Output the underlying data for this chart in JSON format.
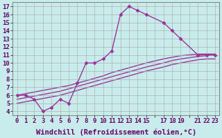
{
  "xlabel": "Windchill (Refroidissement éolien,°C)",
  "background_color": "#c8ecec",
  "grid_color": "#b0b0b0",
  "line_color": "#993399",
  "xlim": [
    -0.5,
    23.5
  ],
  "ylim": [
    3.5,
    17.5
  ],
  "xtick_labels": [
    "0",
    "1",
    "2",
    "3",
    "4",
    "5",
    "6",
    "7",
    "8",
    "9",
    "10",
    "11",
    "12",
    "13",
    "14",
    "15",
    "",
    "17",
    "18",
    "19",
    "",
    "21",
    "22",
    "23"
  ],
  "xtick_pos": [
    0,
    1,
    2,
    3,
    4,
    5,
    6,
    7,
    8,
    9,
    10,
    11,
    12,
    13,
    14,
    15,
    16,
    17,
    18,
    19,
    20,
    21,
    22,
    23
  ],
  "ytick_labels": [
    "4",
    "5",
    "6",
    "7",
    "8",
    "9",
    "10",
    "11",
    "12",
    "13",
    "14",
    "15",
    "16",
    "17"
  ],
  "ytick_pos": [
    4,
    5,
    6,
    7,
    8,
    9,
    10,
    11,
    12,
    13,
    14,
    15,
    16,
    17
  ],
  "curve_x": [
    0,
    1,
    2,
    3,
    4,
    5,
    6,
    7,
    8,
    9,
    10,
    11,
    12,
    13,
    14,
    15,
    17,
    18,
    19,
    21,
    22,
    23
  ],
  "curve_y": [
    6.0,
    6.0,
    5.5,
    4.0,
    4.5,
    5.5,
    5.0,
    7.5,
    10.0,
    10.0,
    10.5,
    11.5,
    16.0,
    17.0,
    16.5,
    16.0,
    15.0,
    14.0,
    13.0,
    11.0,
    11.0,
    11.0
  ],
  "ref1_x": [
    0,
    1,
    2,
    3,
    4,
    5,
    6,
    7,
    8,
    9,
    10,
    11,
    12,
    13,
    14,
    15,
    17,
    18,
    19,
    21,
    22,
    23
  ],
  "ref1_y": [
    6.0,
    6.2,
    6.4,
    6.6,
    6.8,
    7.0,
    7.2,
    7.5,
    7.8,
    8.1,
    8.4,
    8.8,
    9.1,
    9.4,
    9.7,
    10.0,
    10.5,
    10.7,
    10.9,
    11.1,
    11.1,
    11.1
  ],
  "ref2_x": [
    0,
    1,
    2,
    3,
    4,
    5,
    6,
    7,
    8,
    9,
    10,
    11,
    12,
    13,
    14,
    15,
    17,
    18,
    19,
    21,
    22,
    23
  ],
  "ref2_y": [
    5.5,
    5.7,
    5.9,
    6.1,
    6.3,
    6.5,
    6.8,
    7.1,
    7.4,
    7.7,
    8.0,
    8.3,
    8.6,
    8.9,
    9.2,
    9.5,
    10.0,
    10.3,
    10.5,
    10.8,
    10.9,
    11.0
  ],
  "ref3_x": [
    0,
    1,
    2,
    3,
    4,
    5,
    6,
    7,
    8,
    9,
    10,
    11,
    12,
    13,
    14,
    15,
    17,
    18,
    19,
    21,
    22,
    23
  ],
  "ref3_y": [
    5.0,
    5.2,
    5.4,
    5.6,
    5.8,
    6.0,
    6.3,
    6.6,
    6.9,
    7.2,
    7.5,
    7.8,
    8.1,
    8.4,
    8.7,
    9.0,
    9.5,
    9.8,
    10.0,
    10.4,
    10.5,
    10.5
  ],
  "marker": "D",
  "markersize": 2.5,
  "linewidth": 1.0,
  "font_family": "monospace",
  "xlabel_fontsize": 7.5,
  "tick_fontsize": 6.5,
  "tick_color": "#660066",
  "xlabel_color": "#660066"
}
